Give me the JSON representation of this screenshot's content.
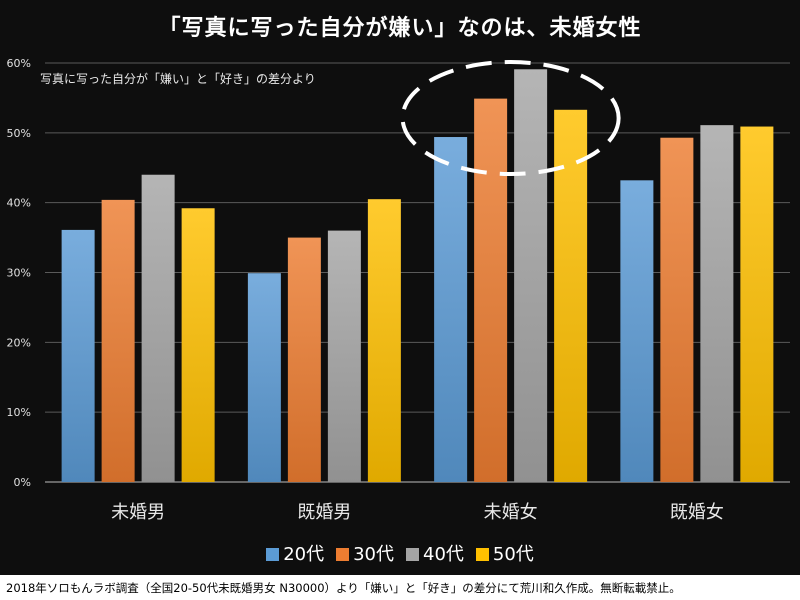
{
  "chart_data": {
    "type": "bar",
    "title": "「写真に写った自分が嫌い」なのは、未婚女性",
    "subtitle": "写真に写った自分が「嫌い」と「好き」の差分より",
    "categories": [
      "未婚男",
      "既婚男",
      "未婚女",
      "既婚女"
    ],
    "series": [
      {
        "name": "20代",
        "values": [
          36.1,
          29.9,
          49.4,
          43.2
        ],
        "color": "#5b9bd5"
      },
      {
        "name": "30代",
        "values": [
          40.4,
          35.0,
          54.9,
          49.3
        ],
        "color": "#ed7d31"
      },
      {
        "name": "40代",
        "values": [
          44.0,
          36.0,
          59.1,
          51.1
        ],
        "color": "#a5a5a5"
      },
      {
        "name": "50代",
        "values": [
          39.2,
          40.5,
          53.3,
          50.9
        ],
        "color": "#ffc000"
      }
    ],
    "ylim": [
      0,
      60
    ],
    "yticks": [
      "0%",
      "10%",
      "20%",
      "30%",
      "40%",
      "50%",
      "60%"
    ],
    "grid": true,
    "legend_position": "bottom",
    "annotation": {
      "type": "dashed-ellipse",
      "category": "未婚女",
      "color": "#ffffff"
    }
  },
  "footer": "2018年ソロもんラボ調査（全国20-50代未既婚男女 N30000）より「嫌い」と「好き」の差分にて荒川和久作成。無断転載禁止。"
}
